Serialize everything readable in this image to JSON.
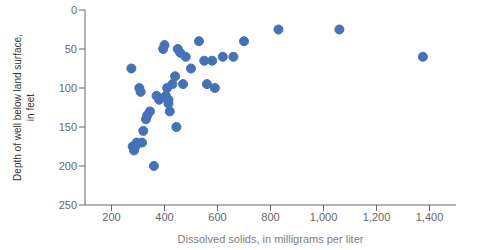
{
  "chart_data": {
    "type": "scatter",
    "x": [
      275,
      280,
      285,
      290,
      295,
      305,
      310,
      315,
      320,
      330,
      335,
      345,
      360,
      370,
      380,
      395,
      400,
      405,
      410,
      415,
      415,
      420,
      430,
      440,
      445,
      450,
      460,
      470,
      480,
      500,
      530,
      550,
      560,
      580,
      590,
      620,
      660,
      700,
      830,
      1060,
      1375
    ],
    "values": [
      75,
      175,
      180,
      175,
      170,
      100,
      105,
      170,
      155,
      140,
      135,
      130,
      200,
      110,
      115,
      50,
      45,
      110,
      100,
      115,
      120,
      130,
      95,
      85,
      150,
      50,
      55,
      95,
      60,
      75,
      40,
      65,
      95,
      65,
      100,
      60,
      60,
      40,
      25,
      25,
      60
    ],
    "x_label": "Dissolved solids, in milligrams per liter",
    "y_label": "Depth of well below land surface,\nin feet",
    "xlim": [
      100,
      1500
    ],
    "ylim": [
      250,
      0
    ],
    "xticks": [
      {
        "value": 200,
        "label": "200"
      },
      {
        "value": 400,
        "label": "400"
      },
      {
        "value": 600,
        "label": "600"
      },
      {
        "value": 800,
        "label": "800"
      },
      {
        "value": 1000,
        "label": "1,000"
      },
      {
        "value": 1200,
        "label": "1,200"
      },
      {
        "value": 1400,
        "label": "1,400"
      }
    ],
    "yticks": [
      0,
      50,
      100,
      150,
      200,
      250
    ],
    "color": "#4472b8"
  }
}
